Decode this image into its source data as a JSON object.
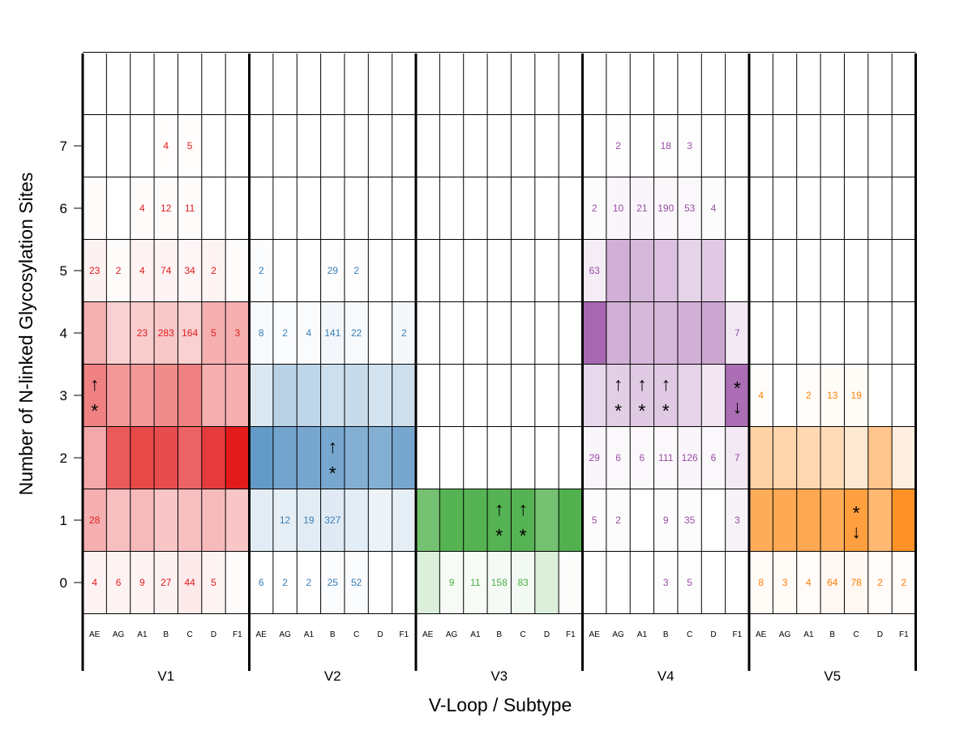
{
  "chart_data": {
    "type": "heatmap",
    "title": "",
    "xlabel": "V-Loop / Subtype",
    "ylabel": "Number of N-linked Glycosylation Sites",
    "yticks": [
      0,
      1,
      2,
      3,
      4,
      5,
      6,
      7
    ],
    "y_levels": [
      0,
      1,
      2,
      3,
      4,
      5,
      6,
      7,
      8
    ],
    "subtypes": [
      "AE",
      "AG",
      "A1",
      "B",
      "C",
      "D",
      "F1"
    ],
    "loops": [
      {
        "name": "V1",
        "color": "#e31a1c",
        "counts": {
          "AE": {
            "0": 4,
            "1": 28,
            "5": 23
          },
          "AG": {
            "0": 6,
            "5": 2
          },
          "A1": {
            "0": 9,
            "4": 23,
            "5": 4,
            "6": 4
          },
          "B": {
            "0": 27,
            "4": 283,
            "5": 74,
            "6": 12,
            "7": 4
          },
          "C": {
            "0": 44,
            "4": 164,
            "5": 34,
            "6": 11,
            "7": 5
          },
          "D": {
            "0": 5,
            "4": 5,
            "5": 2
          },
          "F1": {
            "4": 3
          }
        },
        "shading": [
          [
            0.05,
            0.35,
            0.38,
            0.55,
            0.34,
            0.06,
            0.02,
            0.0,
            0.0
          ],
          [
            0.05,
            0.28,
            0.72,
            0.45,
            0.2,
            0.02,
            0.0,
            0.0,
            0.0
          ],
          [
            0.05,
            0.3,
            0.8,
            0.45,
            0.22,
            0.05,
            0.02,
            0.0,
            0.0
          ],
          [
            0.06,
            0.25,
            0.78,
            0.5,
            0.24,
            0.05,
            0.02,
            0.01,
            0.0
          ],
          [
            0.09,
            0.28,
            0.68,
            0.55,
            0.2,
            0.04,
            0.02,
            0.01,
            0.0
          ],
          [
            0.05,
            0.3,
            0.85,
            0.35,
            0.35,
            0.05,
            0.0,
            0.0,
            0.0
          ],
          [
            0.02,
            0.25,
            1.0,
            0.35,
            0.35,
            0.02,
            0.0,
            0.0,
            0.0
          ]
        ],
        "markers": [
          {
            "subtype": "AE",
            "sites": 3,
            "symbol": "↑\n*"
          }
        ]
      },
      {
        "name": "V2",
        "color": "#377eb8",
        "counts": {
          "AE": {
            "0": 6,
            "4": 8,
            "5": 2
          },
          "AG": {
            "0": 2,
            "1": 12,
            "4": 2
          },
          "A1": {
            "0": 2,
            "1": 19,
            "4": 4
          },
          "B": {
            "0": 25,
            "1": 327,
            "4": 141,
            "5": 29
          },
          "C": {
            "0": 52,
            "4": 22,
            "5": 2
          },
          "D": {},
          "F1": {
            "4": 2
          }
        },
        "shading": [
          [
            0.0,
            0.15,
            0.78,
            0.18,
            0.04,
            0.02,
            0.0,
            0.0,
            0.0
          ],
          [
            0.0,
            0.12,
            0.7,
            0.35,
            0.02,
            0.0,
            0.0,
            0.0,
            0.0
          ],
          [
            0.0,
            0.15,
            0.68,
            0.32,
            0.03,
            0.0,
            0.0,
            0.0,
            0.0
          ],
          [
            0.02,
            0.16,
            0.68,
            0.25,
            0.06,
            0.01,
            0.0,
            0.0,
            0.0
          ],
          [
            0.02,
            0.14,
            0.62,
            0.28,
            0.04,
            0.01,
            0.0,
            0.0,
            0.0
          ],
          [
            0.0,
            0.1,
            0.62,
            0.22,
            0.0,
            0.0,
            0.0,
            0.0,
            0.0
          ],
          [
            0.0,
            0.12,
            0.68,
            0.25,
            0.05,
            0.0,
            0.0,
            0.0,
            0.0
          ]
        ],
        "markers": [
          {
            "subtype": "B",
            "sites": 2,
            "symbol": "↑\n*"
          }
        ]
      },
      {
        "name": "V3",
        "color": "#4daf4a",
        "counts": {
          "AE": {},
          "AG": {
            "0": 9
          },
          "A1": {
            "0": 11
          },
          "B": {
            "0": 158
          },
          "C": {
            "0": 83
          },
          "D": {},
          "F1": {}
        },
        "shading": [
          [
            0.2,
            0.78,
            0.0,
            0.0,
            0.0,
            0.0,
            0.0,
            0.0,
            0.0
          ],
          [
            0.05,
            0.95,
            0.0,
            0.0,
            0.0,
            0.0,
            0.0,
            0.0,
            0.0
          ],
          [
            0.05,
            0.95,
            0.0,
            0.0,
            0.0,
            0.0,
            0.0,
            0.0,
            0.0
          ],
          [
            0.06,
            0.95,
            0.0,
            0.0,
            0.0,
            0.0,
            0.0,
            0.0,
            0.0
          ],
          [
            0.07,
            0.95,
            0.0,
            0.0,
            0.0,
            0.0,
            0.0,
            0.0,
            0.0
          ],
          [
            0.2,
            0.78,
            0.0,
            0.0,
            0.0,
            0.0,
            0.0,
            0.0,
            0.0
          ],
          [
            0.02,
            0.98,
            0.0,
            0.0,
            0.0,
            0.0,
            0.0,
            0.0,
            0.0
          ]
        ],
        "markers": [
          {
            "subtype": "B",
            "sites": 1,
            "symbol": "↑\n*"
          },
          {
            "subtype": "C",
            "sites": 1,
            "symbol": "↑\n*"
          }
        ]
      },
      {
        "name": "V4",
        "color": "#984ea3",
        "counts": {
          "AE": {
            "1": 5,
            "2": 29,
            "5": 63,
            "6": 2
          },
          "AG": {
            "1": 2,
            "2": 6,
            "6": 10,
            "7": 2
          },
          "A1": {
            "2": 6,
            "6": 21
          },
          "B": {
            "0": 3,
            "1": 9,
            "2": 111,
            "6": 190,
            "7": 18
          },
          "C": {
            "0": 5,
            "1": 35,
            "2": 126,
            "6": 53,
            "7": 3
          },
          "D": {
            "2": 6,
            "6": 4
          },
          "F1": {
            "1": 3,
            "2": 7,
            "4": 7
          }
        },
        "shading": [
          [
            0.0,
            0.02,
            0.06,
            0.22,
            0.85,
            0.1,
            0.02,
            0.0,
            0.0
          ],
          [
            0.0,
            0.02,
            0.04,
            0.28,
            0.45,
            0.45,
            0.06,
            0.01,
            0.0
          ],
          [
            0.0,
            0.0,
            0.04,
            0.3,
            0.4,
            0.4,
            0.06,
            0.0,
            0.0
          ],
          [
            0.01,
            0.02,
            0.04,
            0.3,
            0.4,
            0.35,
            0.05,
            0.01,
            0.0
          ],
          [
            0.01,
            0.02,
            0.06,
            0.25,
            0.45,
            0.25,
            0.04,
            0.01,
            0.0
          ],
          [
            0.0,
            0.0,
            0.04,
            0.15,
            0.5,
            0.3,
            0.02,
            0.0,
            0.0
          ],
          [
            0.0,
            0.08,
            0.12,
            0.82,
            0.12,
            0.0,
            0.0,
            0.0,
            0.0
          ]
        ],
        "markers": [
          {
            "subtype": "AG",
            "sites": 3,
            "symbol": "↑\n*"
          },
          {
            "subtype": "A1",
            "sites": 3,
            "symbol": "↑\n*"
          },
          {
            "subtype": "B",
            "sites": 3,
            "symbol": "↑\n*"
          },
          {
            "subtype": "F1",
            "sites": 3,
            "symbol": "*\n↓"
          }
        ]
      },
      {
        "name": "V5",
        "color": "#ff7f00",
        "counts": {
          "AE": {
            "0": 8,
            "3": 4
          },
          "AG": {
            "0": 3
          },
          "A1": {
            "0": 4,
            "3": 2
          },
          "B": {
            "0": 64,
            "3": 13
          },
          "C": {
            "0": 78,
            "3": 19
          },
          "D": {
            "0": 2
          },
          "F1": {
            "0": 2
          }
        },
        "shading": [
          [
            0.03,
            0.65,
            0.35,
            0.02,
            0.0,
            0.0,
            0.0,
            0.0,
            0.0
          ],
          [
            0.03,
            0.67,
            0.33,
            0.0,
            0.0,
            0.0,
            0.0,
            0.0,
            0.0
          ],
          [
            0.02,
            0.68,
            0.3,
            0.02,
            0.0,
            0.0,
            0.0,
            0.0,
            0.0
          ],
          [
            0.05,
            0.66,
            0.28,
            0.03,
            0.0,
            0.0,
            0.0,
            0.0,
            0.0
          ],
          [
            0.05,
            0.75,
            0.18,
            0.03,
            0.0,
            0.0,
            0.0,
            0.0,
            0.0
          ],
          [
            0.02,
            0.55,
            0.45,
            0.0,
            0.0,
            0.0,
            0.0,
            0.0,
            0.0
          ],
          [
            0.02,
            0.85,
            0.12,
            0.0,
            0.0,
            0.0,
            0.0,
            0.0,
            0.0
          ]
        ],
        "markers": [
          {
            "subtype": "C",
            "sites": 1,
            "symbol": "*\n↓"
          }
        ]
      }
    ],
    "grid": true,
    "legend": "none"
  }
}
